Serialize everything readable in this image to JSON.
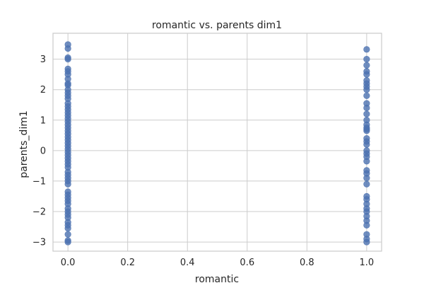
{
  "chart_data": {
    "type": "scatter",
    "title": "romantic vs. parents dim1",
    "xlabel": "romantic",
    "ylabel": "parents_dim1",
    "xlim": [
      -0.05,
      1.05
    ],
    "ylim": [
      -3.3,
      3.85
    ],
    "xticks": [
      0.0,
      0.2,
      0.4,
      0.6,
      0.8,
      1.0
    ],
    "xtick_labels": [
      "0.0",
      "0.2",
      "0.4",
      "0.6",
      "0.8",
      "1.0"
    ],
    "yticks": [
      -3,
      -2,
      -1,
      0,
      1,
      2,
      3
    ],
    "ytick_labels": [
      "−3",
      "−2",
      "−1",
      "0",
      "1",
      "2",
      "3"
    ],
    "grid": true,
    "legend": "none",
    "series": [
      {
        "color": "#4c72b0",
        "points": [
          [
            0,
            3.48
          ],
          [
            0,
            3.35
          ],
          [
            0,
            3.05
          ],
          [
            0,
            3.0
          ],
          [
            0,
            2.68
          ],
          [
            0,
            2.6
          ],
          [
            0,
            2.5
          ],
          [
            0,
            2.35
          ],
          [
            0,
            2.2
          ],
          [
            0,
            2.15
          ],
          [
            0,
            2.0
          ],
          [
            0,
            1.9
          ],
          [
            0,
            1.8
          ],
          [
            0,
            1.7
          ],
          [
            0,
            1.55
          ],
          [
            0,
            1.45
          ],
          [
            0,
            1.35
          ],
          [
            0,
            1.25
          ],
          [
            0,
            1.15
          ],
          [
            0,
            1.05
          ],
          [
            0,
            0.95
          ],
          [
            0,
            0.85
          ],
          [
            0,
            0.75
          ],
          [
            0,
            0.65
          ],
          [
            0,
            0.55
          ],
          [
            0,
            0.45
          ],
          [
            0,
            0.35
          ],
          [
            0,
            0.25
          ],
          [
            0,
            0.15
          ],
          [
            0,
            0.05
          ],
          [
            0,
            -0.05
          ],
          [
            0,
            -0.15
          ],
          [
            0,
            -0.25
          ],
          [
            0,
            -0.35
          ],
          [
            0,
            -0.45
          ],
          [
            0,
            -0.55
          ],
          [
            0,
            -0.7
          ],
          [
            0,
            -0.8
          ],
          [
            0,
            -0.9
          ],
          [
            0,
            -1.0
          ],
          [
            0,
            -1.1
          ],
          [
            0,
            -1.35
          ],
          [
            0,
            -1.45
          ],
          [
            0,
            -1.55
          ],
          [
            0,
            -1.65
          ],
          [
            0,
            -1.75
          ],
          [
            0,
            -1.9
          ],
          [
            0,
            -2.0
          ],
          [
            0,
            -2.1
          ],
          [
            0,
            -2.2
          ],
          [
            0,
            -2.35
          ],
          [
            0,
            -2.45
          ],
          [
            0,
            -2.55
          ],
          [
            0,
            -2.75
          ],
          [
            0,
            -2.95
          ],
          [
            0,
            -3.0
          ],
          [
            1,
            3.32
          ],
          [
            1,
            3.0
          ],
          [
            1,
            2.8
          ],
          [
            1,
            2.6
          ],
          [
            1,
            2.5
          ],
          [
            1,
            2.3
          ],
          [
            1,
            2.2
          ],
          [
            1,
            2.1
          ],
          [
            1,
            2.0
          ],
          [
            1,
            1.8
          ],
          [
            1,
            1.55
          ],
          [
            1,
            1.4
          ],
          [
            1,
            1.2
          ],
          [
            1,
            1.0
          ],
          [
            1,
            0.85
          ],
          [
            1,
            0.75
          ],
          [
            1,
            0.7
          ],
          [
            1,
            0.65
          ],
          [
            1,
            0.4
          ],
          [
            1,
            0.3
          ],
          [
            1,
            0.2
          ],
          [
            1,
            0.0
          ],
          [
            1,
            -0.1
          ],
          [
            1,
            -0.2
          ],
          [
            1,
            -0.35
          ],
          [
            1,
            -0.65
          ],
          [
            1,
            -0.75
          ],
          [
            1,
            -0.9
          ],
          [
            1,
            -1.1
          ],
          [
            1,
            -1.5
          ],
          [
            1,
            -1.6
          ],
          [
            1,
            -1.75
          ],
          [
            1,
            -1.9
          ],
          [
            1,
            -2.0
          ],
          [
            1,
            -2.15
          ],
          [
            1,
            -2.3
          ],
          [
            1,
            -2.45
          ],
          [
            1,
            -2.75
          ],
          [
            1,
            -2.9
          ],
          [
            1,
            -3.0
          ]
        ]
      }
    ]
  }
}
